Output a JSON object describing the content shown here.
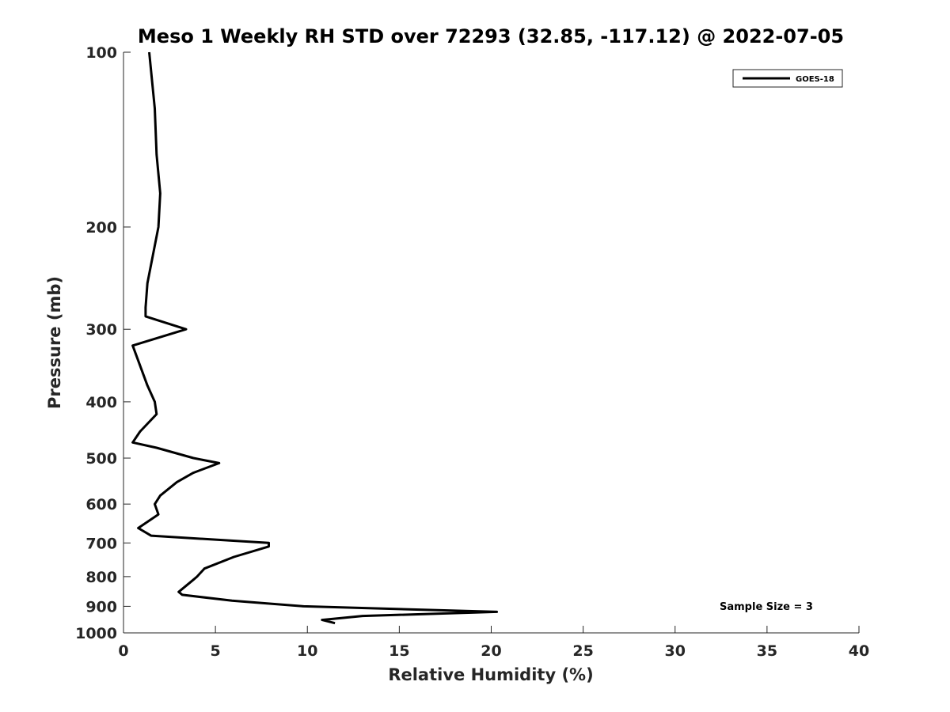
{
  "chart_data": {
    "type": "line",
    "title": "Meso 1 Weekly RH STD over 72293 (32.85, -117.12) @ 2022-07-05",
    "xlabel": "Relative Humidity (%)",
    "ylabel": "Pressure (mb)",
    "xlim": [
      0,
      40
    ],
    "ylim": [
      100,
      1000
    ],
    "y_scale": "log",
    "y_reversed": true,
    "x_ticks": [
      0,
      5,
      10,
      15,
      20,
      25,
      30,
      35,
      40
    ],
    "y_ticks": [
      100,
      200,
      300,
      400,
      500,
      600,
      700,
      800,
      900,
      1000
    ],
    "grid": false,
    "legend_position": "top-right",
    "annotation": "Sample Size = 3",
    "series": [
      {
        "name": "GOES-18",
        "color": "#000000",
        "points": [
          [
            1.4,
            100
          ],
          [
            1.7,
            125
          ],
          [
            1.8,
            150
          ],
          [
            2.0,
            175
          ],
          [
            1.9,
            200
          ],
          [
            1.3,
            250
          ],
          [
            1.2,
            275
          ],
          [
            1.2,
            285
          ],
          [
            3.4,
            300
          ],
          [
            0.5,
            320
          ],
          [
            1.3,
            375
          ],
          [
            1.7,
            400
          ],
          [
            1.8,
            420
          ],
          [
            0.9,
            450
          ],
          [
            0.5,
            470
          ],
          [
            1.8,
            480
          ],
          [
            3.8,
            500
          ],
          [
            5.2,
            510
          ],
          [
            3.8,
            530
          ],
          [
            2.9,
            550
          ],
          [
            2.0,
            580
          ],
          [
            1.7,
            600
          ],
          [
            1.9,
            625
          ],
          [
            0.8,
            660
          ],
          [
            1.5,
            680
          ],
          [
            7.9,
            700
          ],
          [
            7.9,
            710
          ],
          [
            6.0,
            740
          ],
          [
            4.4,
            775
          ],
          [
            4.0,
            800
          ],
          [
            3.8,
            810
          ],
          [
            3.0,
            850
          ],
          [
            3.2,
            860
          ],
          [
            5.9,
            880
          ],
          [
            9.8,
            900
          ],
          [
            20.3,
            920
          ],
          [
            13.0,
            935
          ],
          [
            10.8,
            950
          ],
          [
            11.5,
            962
          ]
        ]
      }
    ]
  }
}
